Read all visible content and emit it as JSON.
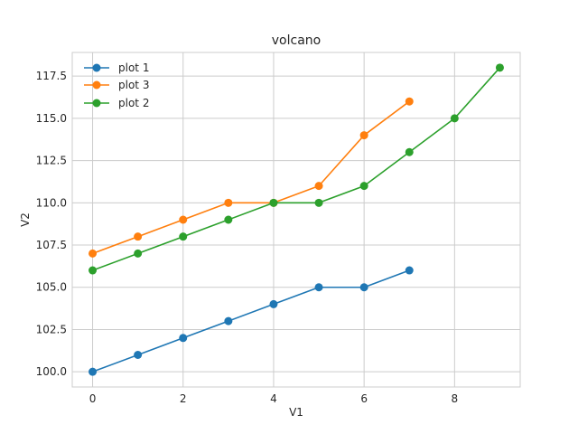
{
  "chart_data": {
    "type": "line",
    "title": "volcano",
    "xlabel": "V1",
    "ylabel": "V2",
    "xlim": [
      -0.45,
      9.45
    ],
    "ylim": [
      99.1,
      118.9
    ],
    "xticks": [
      0,
      2,
      4,
      6,
      8
    ],
    "yticks": [
      100.0,
      102.5,
      105.0,
      107.5,
      110.0,
      112.5,
      115.0,
      117.5
    ],
    "xtick_labels": [
      "0",
      "2",
      "4",
      "6",
      "8"
    ],
    "ytick_labels": [
      "100.0",
      "102.5",
      "105.0",
      "107.5",
      "110.0",
      "112.5",
      "115.0",
      "117.5"
    ],
    "grid": true,
    "legend_position": "top-left",
    "series": [
      {
        "name": "plot 1",
        "color": "#1f77b4",
        "marker": "circle",
        "x": [
          0,
          1,
          2,
          3,
          4,
          5,
          6,
          7
        ],
        "y": [
          100,
          101,
          102,
          103,
          104,
          105,
          105,
          106
        ]
      },
      {
        "name": "plot 3",
        "color": "#ff7f0e",
        "marker": "circle",
        "x": [
          0,
          1,
          2,
          3,
          4,
          5,
          6,
          7
        ],
        "y": [
          107,
          108,
          109,
          110,
          110,
          111,
          114,
          116
        ]
      },
      {
        "name": "plot 2",
        "color": "#2ca02c",
        "marker": "circle",
        "x": [
          0,
          1,
          2,
          3,
          4,
          5,
          6,
          7,
          8,
          9
        ],
        "y": [
          106,
          107,
          108,
          109,
          110,
          110,
          111,
          113,
          115,
          118
        ]
      }
    ]
  }
}
